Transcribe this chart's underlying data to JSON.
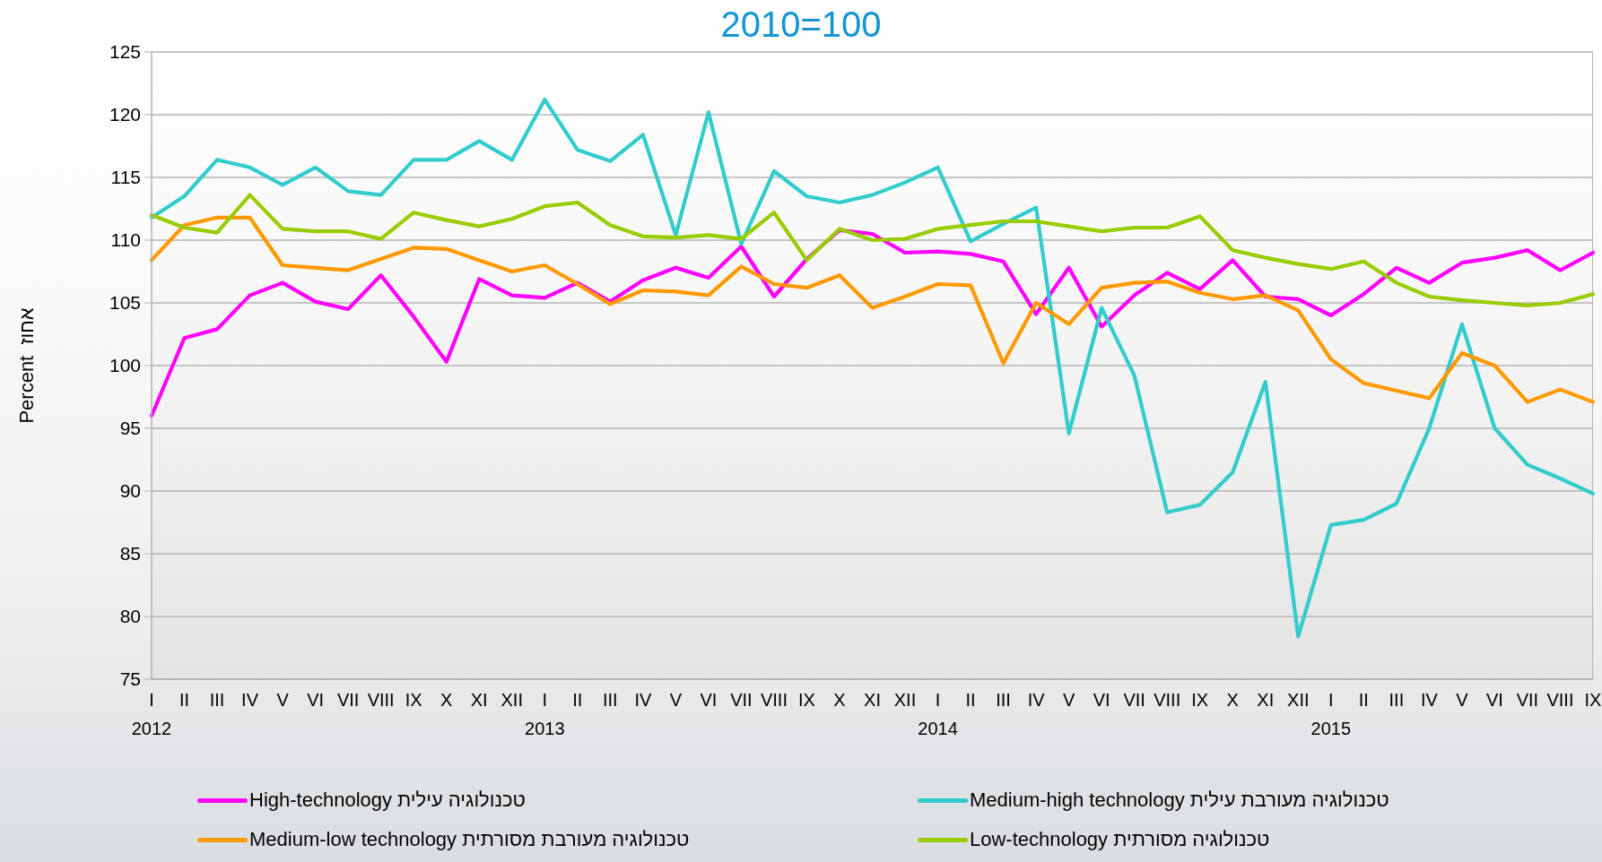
{
  "chart_data": {
    "type": "line",
    "title": "2010=100",
    "ylabel": "Percent  אחוז",
    "categories": [
      "I\n2012",
      "II",
      "III",
      "IV",
      "V",
      "VI",
      "VII",
      "VIII",
      "IX",
      "X",
      "XI",
      "XII",
      "I\n2013",
      "II",
      "III",
      "IV",
      "V",
      "VI",
      "VII",
      "VIII",
      "IX",
      "X",
      "XI",
      "XII",
      "I\n2014",
      "II",
      "III",
      "IV",
      "V",
      "VI",
      "VII",
      "VIII",
      "IX",
      "X",
      "XI",
      "XII",
      "I\n2015",
      "II",
      "III",
      "IV",
      "V",
      "VI",
      "VII",
      "VIII",
      "IX"
    ],
    "series": [
      {
        "name": "High-technology טכנולוגיה עילית",
        "color": "#ff00ff",
        "values": [
          96.0,
          102.2,
          102.9,
          105.6,
          106.6,
          105.1,
          104.5,
          107.2,
          103.9,
          100.3,
          106.9,
          105.6,
          105.4,
          106.6,
          105.1,
          106.8,
          107.8,
          107.0,
          109.5,
          105.5,
          108.5,
          110.8,
          110.5,
          109.0,
          109.1,
          108.9,
          108.3,
          104.1,
          107.8,
          103.1,
          105.6,
          107.4,
          106.1,
          108.4,
          105.5,
          105.3,
          104.0,
          105.7,
          107.8,
          106.6,
          108.2,
          108.6,
          109.2,
          107.6,
          109.0
        ]
      },
      {
        "name": "Medium-high technology טכנולוגיה מעורבת עילית",
        "color": "#33cccc",
        "values": [
          111.8,
          113.5,
          116.4,
          115.8,
          114.4,
          115.8,
          113.9,
          113.6,
          116.4,
          116.4,
          117.9,
          116.4,
          121.2,
          117.2,
          116.3,
          118.4,
          110.4,
          120.2,
          109.7,
          115.5,
          113.5,
          113.0,
          113.6,
          114.6,
          115.8,
          109.9,
          111.3,
          112.6,
          94.6,
          104.6,
          99.2,
          88.3,
          88.9,
          91.5,
          98.7,
          78.4,
          87.3,
          87.7,
          89.0,
          95.0,
          103.3,
          95.0,
          92.1,
          91.0,
          89.8
        ]
      },
      {
        "name": "Medium-low technology טכנולוגיה מעורבת מסורתית",
        "color": "#ff9900",
        "values": [
          108.4,
          111.2,
          111.8,
          111.8,
          108.0,
          107.8,
          107.6,
          108.5,
          109.4,
          109.3,
          108.4,
          107.5,
          108.0,
          106.5,
          104.9,
          106.0,
          105.9,
          105.6,
          107.9,
          106.5,
          106.2,
          107.2,
          104.6,
          105.5,
          106.5,
          106.4,
          100.2,
          105.0,
          103.3,
          106.2,
          106.6,
          106.7,
          105.8,
          105.3,
          105.6,
          104.4,
          100.5,
          98.6,
          98.0,
          97.4,
          101.0,
          100.0,
          97.1,
          98.1,
          97.1
        ]
      },
      {
        "name": "Low-technology טכנולוגיה מסורתית",
        "color": "#99cc00",
        "values": [
          112.0,
          111.0,
          110.6,
          113.6,
          110.9,
          110.7,
          110.7,
          110.1,
          112.2,
          111.6,
          111.1,
          111.7,
          112.7,
          113.0,
          111.2,
          110.3,
          110.2,
          110.4,
          110.1,
          112.2,
          108.4,
          110.9,
          110.0,
          110.1,
          110.9,
          111.2,
          111.5,
          111.5,
          111.1,
          110.7,
          111.0,
          111.0,
          111.9,
          109.2,
          108.6,
          108.1,
          107.7,
          108.3,
          106.6,
          105.5,
          105.2,
          105.0,
          104.8,
          105.0,
          105.7
        ]
      }
    ],
    "ylim": [
      75,
      125
    ],
    "yticks": [
      75,
      80,
      85,
      90,
      95,
      100,
      105,
      110,
      115,
      120,
      125
    ],
    "grid": "y",
    "legend": "bottom",
    "marker": "none",
    "line_style": "solid"
  }
}
